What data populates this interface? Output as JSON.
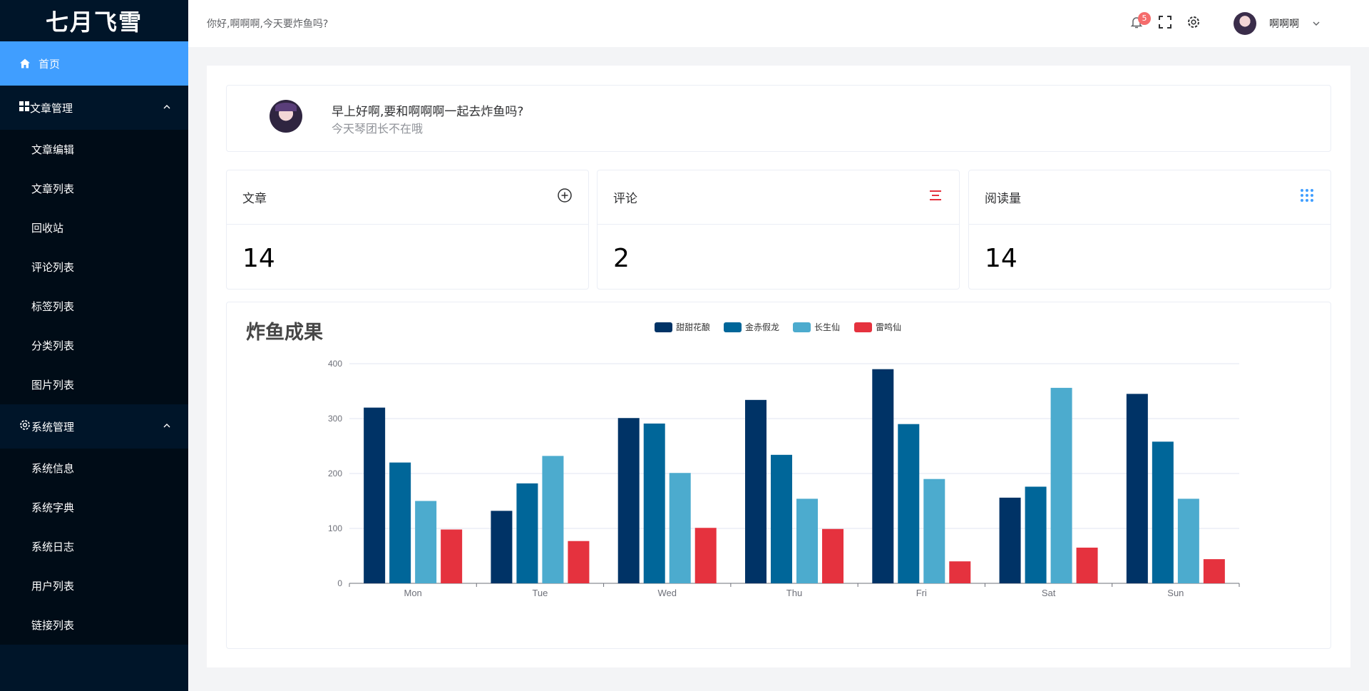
{
  "app": {
    "logo": "七月飞雪"
  },
  "header": {
    "greeting": "你好,啊啊啊,今天要炸鱼吗?",
    "notification_count": "5",
    "username": "啊啊啊"
  },
  "sidebar": {
    "home": "首页",
    "groups": [
      {
        "title": "文章管理",
        "items": [
          "文章编辑",
          "文章列表",
          "回收站",
          "评论列表",
          "标签列表",
          "分类列表",
          "图片列表"
        ]
      },
      {
        "title": "系统管理",
        "items": [
          "系统信息",
          "系统字典",
          "系统日志",
          "用户列表",
          "链接列表"
        ]
      }
    ]
  },
  "welcome": {
    "title": "早上好啊,要和啊啊啊一起去炸鱼吗?",
    "subtitle": "今天琴团长不在哦"
  },
  "stats": [
    {
      "label": "文章",
      "value": "14",
      "icon": "plus-circle-icon"
    },
    {
      "label": "评论",
      "value": "2",
      "icon": "list-icon"
    },
    {
      "label": "阅读量",
      "value": "14",
      "icon": "grid-dots-icon"
    }
  ],
  "colors": {
    "accent": "#409eff",
    "sidebar_bg": "#001529",
    "submenu_bg": "#000c17"
  },
  "chart_data": {
    "type": "bar",
    "title": "炸鱼成果",
    "categories": [
      "Mon",
      "Tue",
      "Wed",
      "Thu",
      "Fri",
      "Sat",
      "Sun"
    ],
    "series": [
      {
        "name": "甜甜花酿",
        "color": "#003366",
        "values": [
          320,
          132,
          301,
          334,
          390,
          156,
          345
        ]
      },
      {
        "name": "金赤假龙",
        "color": "#006699",
        "values": [
          220,
          182,
          291,
          234,
          290,
          176,
          258
        ]
      },
      {
        "name": "长生仙",
        "color": "#4cabce",
        "values": [
          150,
          232,
          201,
          154,
          190,
          356,
          154
        ]
      },
      {
        "name": "雷鸣仙",
        "color": "#e5323e",
        "values": [
          98,
          77,
          101,
          99,
          40,
          65,
          44
        ]
      }
    ],
    "ylim": [
      0,
      400
    ],
    "yticks": [
      0,
      100,
      200,
      300,
      400
    ],
    "grid": true,
    "legend": "top-center"
  }
}
